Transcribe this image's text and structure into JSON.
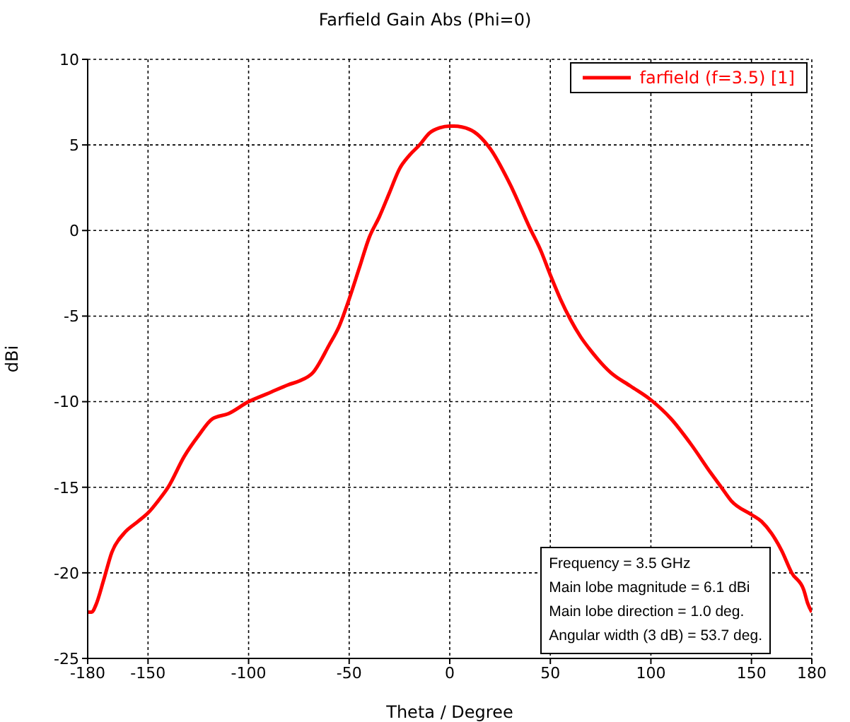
{
  "chart_data": {
    "type": "line",
    "title": "Farfield Gain Abs (Phi=0)",
    "xlabel": "Theta / Degree",
    "ylabel": "dBi",
    "x": [
      -180,
      -178,
      -176,
      -172,
      -168,
      -162,
      -155,
      -150,
      -145,
      -140,
      -132,
      -125,
      -118,
      -110,
      -100,
      -90,
      -80,
      -75,
      -68,
      -60,
      -55,
      -50,
      -45,
      -40,
      -35,
      -30,
      -25,
      -20,
      -15,
      -10,
      -5,
      0,
      2,
      10,
      20,
      30,
      40,
      45,
      50,
      55,
      60,
      65,
      70,
      80,
      90,
      100,
      110,
      120,
      130,
      135,
      140,
      150,
      155,
      160,
      165,
      170,
      176,
      178,
      180
    ],
    "series": [
      {
        "name": "farfield (f=3.5) [1]",
        "color": "#ff0000",
        "values": [
          -22.3,
          -22.3,
          -21.9,
          -20.4,
          -18.8,
          -17.7,
          -17.0,
          -16.5,
          -15.8,
          -15.0,
          -13.2,
          -12.0,
          -11.0,
          -10.7,
          -10.0,
          -9.5,
          -9.0,
          -8.8,
          -8.3,
          -6.7,
          -5.6,
          -4.0,
          -2.2,
          -0.4,
          0.8,
          2.2,
          3.6,
          4.4,
          5.0,
          5.7,
          6.0,
          6.1,
          6.1,
          5.9,
          4.8,
          2.7,
          0.1,
          -1.1,
          -2.6,
          -4.0,
          -5.2,
          -6.2,
          -7.0,
          -8.3,
          -9.1,
          -9.9,
          -11.0,
          -12.5,
          -14.2,
          -15.0,
          -15.8,
          -16.6,
          -17.0,
          -17.7,
          -18.7,
          -20.0,
          -21.0,
          -21.8,
          -22.3
        ]
      }
    ],
    "xlim": [
      -180,
      180
    ],
    "xticks": [
      -180,
      -150,
      -100,
      -50,
      0,
      50,
      100,
      150,
      180
    ],
    "ylim": [
      -25,
      10
    ],
    "yticks": [
      -25,
      -20,
      -15,
      -10,
      -5,
      0,
      5,
      10
    ],
    "grid": true,
    "legend": "top right",
    "marker": "none",
    "line_style": "solid",
    "annotations": [
      "Frequency = 3.5 GHz",
      "Main lobe magnitude = 6.1 dBi",
      "Main lobe direction = 1.0 deg.",
      "Angular width (3 dB) = 53.7 deg."
    ]
  }
}
